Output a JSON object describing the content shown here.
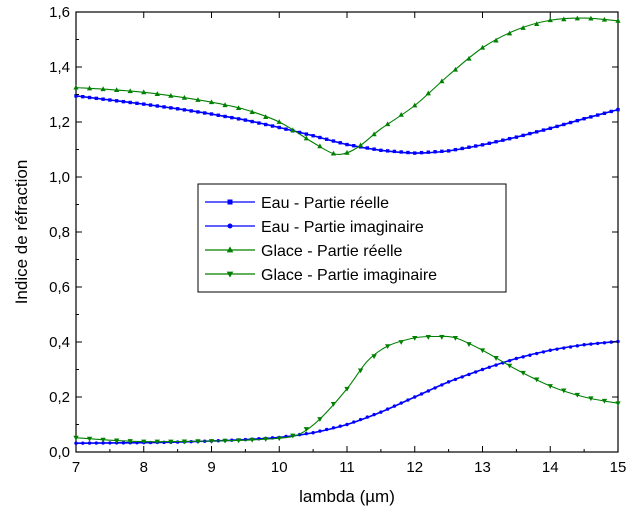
{
  "chart_data": {
    "type": "line",
    "title": "",
    "xlabel": "lambda (µm)",
    "ylabel": "Indice de réfraction",
    "xlim": [
      7,
      15
    ],
    "ylim": [
      0,
      1.6
    ],
    "xticks": [
      7,
      8,
      9,
      10,
      11,
      12,
      13,
      14,
      15
    ],
    "xtick_labels": [
      "7",
      "8",
      "9",
      "10",
      "11",
      "12",
      "13",
      "14",
      "15"
    ],
    "yticks": [
      0,
      0.2,
      0.4,
      0.6,
      0.8,
      1.0,
      1.2,
      1.4,
      1.6
    ],
    "ytick_labels": [
      "0,0",
      "0,2",
      "0,4",
      "0,6",
      "0,8",
      "1,0",
      "1,2",
      "1,4",
      "1,6"
    ],
    "grid": false,
    "legend_position": "center",
    "series": [
      {
        "name": "Eau - Partie réelle",
        "color": "#0000ff",
        "marker": "square",
        "x": [
          7.0,
          7.5,
          8.0,
          8.5,
          9.0,
          9.5,
          10.0,
          10.5,
          11.0,
          11.5,
          12.0,
          12.5,
          13.0,
          13.5,
          14.0,
          14.5,
          15.0
        ],
        "y": [
          1.295,
          1.28,
          1.265,
          1.248,
          1.229,
          1.207,
          1.18,
          1.15,
          1.118,
          1.097,
          1.087,
          1.095,
          1.117,
          1.145,
          1.177,
          1.212,
          1.245
        ]
      },
      {
        "name": "Eau - Partie imaginaire",
        "color": "#0000ff",
        "marker": "circle",
        "x": [
          7.0,
          7.5,
          8.0,
          8.5,
          9.0,
          9.5,
          10.0,
          10.5,
          11.0,
          11.5,
          12.0,
          12.5,
          13.0,
          13.5,
          14.0,
          14.5,
          15.0
        ],
        "y": [
          0.032,
          0.033,
          0.034,
          0.036,
          0.04,
          0.045,
          0.053,
          0.07,
          0.1,
          0.145,
          0.2,
          0.255,
          0.3,
          0.34,
          0.37,
          0.39,
          0.402
        ]
      },
      {
        "name": "Glace - Partie réelle",
        "color": "#008000",
        "marker": "triangle-up",
        "x": [
          7.0,
          7.5,
          8.0,
          8.5,
          9.0,
          9.5,
          10.0,
          10.5,
          10.8,
          11.0,
          11.2,
          11.5,
          12.0,
          12.5,
          13.0,
          13.5,
          14.0,
          14.5,
          15.0
        ],
        "y": [
          1.325,
          1.318,
          1.308,
          1.292,
          1.272,
          1.245,
          1.2,
          1.125,
          1.085,
          1.088,
          1.115,
          1.175,
          1.26,
          1.37,
          1.47,
          1.535,
          1.57,
          1.578,
          1.568
        ]
      },
      {
        "name": "Glace - Partie imaginaire",
        "color": "#008000",
        "marker": "triangle-down",
        "x": [
          7.0,
          7.5,
          8.0,
          8.5,
          9.0,
          9.5,
          10.0,
          10.3,
          10.6,
          11.0,
          11.3,
          11.6,
          12.0,
          12.3,
          12.6,
          13.0,
          13.5,
          14.0,
          14.5,
          15.0
        ],
        "y": [
          0.052,
          0.043,
          0.038,
          0.038,
          0.04,
          0.043,
          0.05,
          0.065,
          0.12,
          0.23,
          0.33,
          0.385,
          0.415,
          0.42,
          0.415,
          0.37,
          0.3,
          0.24,
          0.2,
          0.177
        ]
      }
    ]
  }
}
